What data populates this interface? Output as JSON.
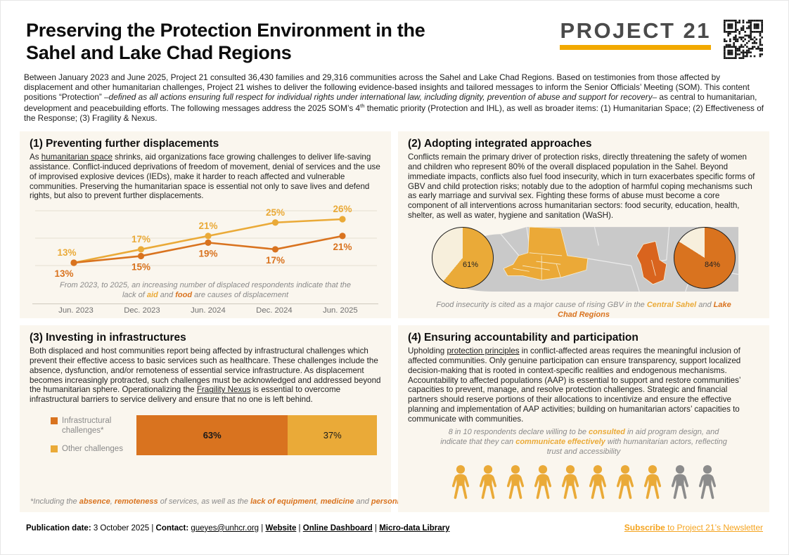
{
  "header": {
    "title_line1": "Preserving the Protection Environment in the",
    "title_line2": "Sahel and Lake Chad Regions",
    "logo": "PROJECT 21"
  },
  "intro": {
    "rich": [
      {
        "t": "Between January 2023 and June 2025, Project 21 consulted 36,430 families and 29,316 communities across the Sahel and Lake Chad Regions. Based on testimonies from those affected by displacement and other humanitarian challenges, Project 21 wishes to deliver the following evidence-based insights and tailored messages to inform the Senior Officials’ Meeting (SOM). This content positions “Protection” "
      },
      {
        "t": "–defined as all actions ensuring full respect for individual rights under international law, including dignity, prevention of abuse and support for recovery–",
        "i": true
      },
      {
        "t": " as central to humanitarian, development and peacebuilding efforts. The following messages address the 2025 SOM’s 4"
      },
      {
        "t": "th",
        "sup": true
      },
      {
        "t": " thematic priority (Protection and IHL), as well as broader items: (1) Humanitarian Space; (2) Effectiveness of the Response; (3) Fragility & Nexus."
      }
    ]
  },
  "sections": {
    "s1": {
      "num": "(1)",
      "title": "Preventing further displacements",
      "body_rich": [
        {
          "t": "As "
        },
        {
          "t": "humanitarian space",
          "u": true
        },
        {
          "t": " shrinks, aid organizations face growing challenges to deliver life-saving assistance. Conflict-induced deprivations of freedom of movement, denial of services and the use of improvised explosive devices (IEDs), make it harder to reach affected and vulnerable communities. Preserving the humanitarian space is essential not only to save lives and defend rights, but also to prevent further displacements."
        }
      ],
      "caption_rich": [
        {
          "t": "From 2023, to 2025, an increasing number of displaced respondents indicate that the lack of ",
          "i": true
        },
        {
          "t": "aid",
          "i": true,
          "b": true,
          "c": "amber"
        },
        {
          "t": " and ",
          "i": true
        },
        {
          "t": "food",
          "i": true,
          "b": true,
          "c": "orange"
        },
        {
          "t": " are causes of displacement",
          "i": true
        }
      ]
    },
    "s2": {
      "num": "(2)",
      "title": "Adopting integrated approaches",
      "body_rich": [
        {
          "t": "Conflicts remain the primary driver of protection risks, directly threatening the safety of women and children who represent 80% of the overall displaced population in the Sahel. Beyond immediate impacts, conflicts also fuel food insecurity, which in turn exacerbates specific forms of GBV and child protection risks; notably due to the adoption of harmful coping mechanisms such as early marriage and survival sex. Fighting these forms of abuse must become a core component of all interventions across humanitarian sectors: food security, education, health, shelter, as well as water, hygiene and sanitation (WaSH)."
        }
      ],
      "caption_rich": [
        {
          "t": "Food insecurity is cited as a major cause of rising GBV in the ",
          "i": true
        },
        {
          "t": "Central Sahel",
          "i": true,
          "b": true,
          "c": "amber"
        },
        {
          "t": " and ",
          "i": true
        },
        {
          "t": "Lake Chad Regions",
          "i": true,
          "b": true,
          "c": "orange"
        }
      ]
    },
    "s3": {
      "num": "(3)",
      "title": "Investing in infrastructures",
      "body_rich": [
        {
          "t": "Both displaced and host communities report being affected by infrastructural challenges which prevent their effective access to basic services such as healthcare. These challenges include the absence, dysfunction, and/or remoteness of essential service infrastructure. As displacement becomes increasingly protracted, such challenges must be acknowledged and addressed beyond the humanitarian sphere. Operationalizing the "
        },
        {
          "t": "Fragility Nexus",
          "u": true
        },
        {
          "t": " is essential to overcome infrastructural barriers to service delivery and ensure that no one is left behind."
        }
      ],
      "footnote_rich": [
        {
          "t": "*Including the ",
          "i": true
        },
        {
          "t": "absence",
          "i": true,
          "b": true,
          "c": "orange"
        },
        {
          "t": ", ",
          "i": true
        },
        {
          "t": "remoteness",
          "i": true,
          "b": true,
          "c": "orange"
        },
        {
          "t": " of services, as well as the ",
          "i": true
        },
        {
          "t": "lack of equipment",
          "i": true,
          "b": true,
          "c": "orange"
        },
        {
          "t": ", ",
          "i": true
        },
        {
          "t": "medicine",
          "i": true,
          "b": true,
          "c": "orange"
        },
        {
          "t": " and ",
          "i": true
        },
        {
          "t": "personnel",
          "i": true,
          "b": true,
          "c": "orange"
        }
      ]
    },
    "s4": {
      "num": "(4)",
      "title": "Ensuring accountability and participation",
      "body_rich": [
        {
          "t": "Upholding "
        },
        {
          "t": "protection principles",
          "u": true
        },
        {
          "t": " in conflict-affected areas requires the meaningful inclusion of affected communities. Only genuine participation can ensure transparency, support localized decision-making that is rooted in context-specific realities and endogenous mechanisms. Accountability to affected populations (AAP) is essential to support and restore communities’ capacities to prevent, manage, and resolve protection challenges. Strategic and financial partners should reserve portions of their allocations to incentivize and ensure the effective planning and implementation of AAP activities; building on humanitarian actors’ capacities to communicate with communities."
        }
      ],
      "caption_rich": [
        {
          "t": "8 in 10 respondents declare willing to be ",
          "i": true
        },
        {
          "t": "consulted",
          "i": true,
          "b": true,
          "c": "amber"
        },
        {
          "t": " in aid program design, and indicate that they can ",
          "i": true
        },
        {
          "t": "communicate effectively",
          "i": true,
          "b": true,
          "c": "amber"
        },
        {
          "t": " with humanitarian actors, reflecting trust and accessibility",
          "i": true
        }
      ]
    }
  },
  "chart_data": [
    {
      "id": "displacement-causes-line",
      "type": "line",
      "categories": [
        "Jun. 2023",
        "Dec. 2023",
        "Jun. 2024",
        "Dec. 2024",
        "Jun. 2025"
      ],
      "series": [
        {
          "name": "lack of aid",
          "color_key": "amber",
          "values": [
            13,
            17,
            21,
            25,
            26
          ]
        },
        {
          "name": "lack of food",
          "color_key": "orange",
          "values": [
            13,
            15,
            19,
            17,
            21
          ]
        }
      ],
      "unit": "%",
      "ylim": [
        10,
        30
      ],
      "grid": true,
      "legend_position": "none"
    },
    {
      "id": "central-sahel-pie",
      "type": "pie",
      "label": "61%",
      "values": [
        61,
        39
      ],
      "colors": [
        "amber",
        "cream_pie"
      ],
      "region": "Central Sahel"
    },
    {
      "id": "lake-chad-pie",
      "type": "pie",
      "label": "84%",
      "values": [
        84,
        16
      ],
      "colors": [
        "orange",
        "cream_pie"
      ],
      "region": "Lake Chad Regions"
    },
    {
      "id": "challenges-bar",
      "type": "bar",
      "stacked": true,
      "unit": "%",
      "segments": [
        {
          "label": "Infrastructural challenges*",
          "value": 63,
          "color_key": "orange"
        },
        {
          "label": "Other challenges",
          "value": 37,
          "color_key": "amber"
        }
      ]
    },
    {
      "id": "consulted-pictograph",
      "type": "pictograph",
      "total": 10,
      "highlighted": 8,
      "highlight_color": "amber",
      "rest_color": "icon_gray"
    }
  ],
  "footer": {
    "left_rich": [
      {
        "t": "Publication date: ",
        "b": true
      },
      {
        "t": "3 October 2025"
      },
      {
        "t": " | "
      },
      {
        "t": "Contact: ",
        "b": true
      },
      {
        "t": "gueyes@unhcr.org",
        "u": true
      },
      {
        "t": " | "
      },
      {
        "t": "Website",
        "b": true,
        "u": true
      },
      {
        "t": " | "
      },
      {
        "t": "Online Dashboard",
        "b": true,
        "u": true
      },
      {
        "t": " | "
      },
      {
        "t": "Micro-data Library",
        "b": true,
        "u": true
      }
    ],
    "right_rich": [
      {
        "t": "Subscribe",
        "b": true,
        "u": true,
        "c": "subscribe_amber"
      },
      {
        "t": " to Project 21’s Newsletter",
        "u": true,
        "c": "subscribe_amber"
      }
    ]
  },
  "colors": {
    "amber": "#EAAA38",
    "orange": "#D9731F",
    "logo_amber": "#F2A900",
    "subscribe_amber": "#F5A41F",
    "cream_panel": "#FAF6EE",
    "cream_pie": "#F7EFDC",
    "map_gray": "#C9C9C9",
    "icon_gray": "#8C8C8C",
    "caption_gray": "#8A8A8A",
    "text_dark": "#1F1F1F",
    "logo_gray": "#4A4A4A"
  }
}
